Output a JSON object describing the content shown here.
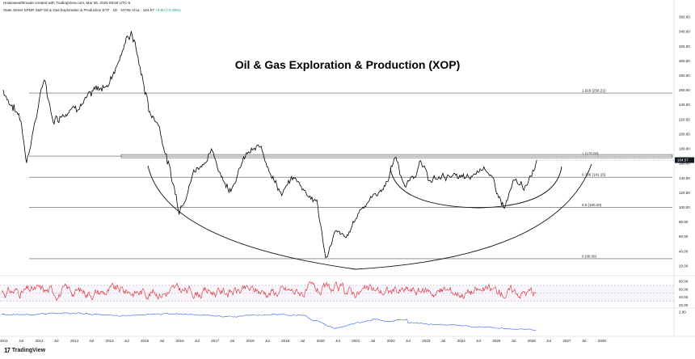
{
  "header": {
    "attribution": "Howtowealthmade created with TradingView.com, Mar 05, 2026 09:59 UTC-5",
    "symbol_line": "State Street SPDR S&P Oil & Gas Exploration & Production ETF · 1D · NYSE Arca",
    "ohlc": "164.57",
    "change": "+3.80 (+2.36%)"
  },
  "title": "Oil & Gas Exploration & Production (XOP)",
  "logo": {
    "mark": "17",
    "text": "TradingView"
  },
  "colors": {
    "price_line": "#000000",
    "rsi_line": "#e0202a",
    "osc_line": "#2962ff",
    "fib_line": "#555555",
    "price_tag": "#131722"
  },
  "chart_data": [
    {
      "type": "line",
      "title": "Oil & Gas Exploration & Production (XOP)",
      "series": [
        {
          "name": "XOP",
          "x": [
            "2011-01",
            "2011-07",
            "2011-09",
            "2012-03",
            "2012-06",
            "2013-01",
            "2013-06",
            "2014-01",
            "2014-06",
            "2014-09",
            "2015-03",
            "2015-06",
            "2016-01",
            "2016-06",
            "2016-12",
            "2017-06",
            "2017-12",
            "2018-05",
            "2018-12",
            "2019-04",
            "2019-12",
            "2020-03",
            "2020-06",
            "2020-10",
            "2021-03",
            "2021-06",
            "2021-11",
            "2022-03",
            "2022-06",
            "2022-11",
            "2023-03",
            "2023-09",
            "2024-04",
            "2024-09",
            "2025-04",
            "2025-07",
            "2025-12",
            "2026-03"
          ],
          "values": [
            260,
            220,
            165,
            275,
            220,
            240,
            250,
            270,
            320,
            340,
            230,
            215,
            98,
            150,
            175,
            125,
            172,
            180,
            118,
            140,
            108,
            30,
            65,
            55,
            100,
            112,
            128,
            170,
            125,
            160,
            135,
            145,
            135,
            160,
            98,
            130,
            128,
            164.57
          ]
        }
      ],
      "xlabels": [
        "2011",
        "2012",
        "2013",
        "2014",
        "2015",
        "2016",
        "2017",
        "2018",
        "2019",
        "2020",
        "2021",
        "2022",
        "2023",
        "2024",
        "2025",
        "2026",
        "2027",
        "2028"
      ],
      "ylabels": [
        "20.00",
        "40.00",
        "60.00",
        "80.00",
        "100.00",
        "120.00",
        "140.00",
        "160.00",
        "180.00",
        "200.00",
        "220.00",
        "240.00",
        "260.00",
        "280.00",
        "300.00",
        "320.00",
        "340.00",
        "360.00"
      ],
      "ylim": [
        10,
        370
      ],
      "price_tag": "164.57",
      "fib_levels": [
        {
          "value": 256.21,
          "label": "1.618 (256.21)"
        },
        {
          "value": 170.0,
          "label": "1 (170.00)"
        },
        {
          "value": 141.15,
          "label": "0.786 (141.15)"
        },
        {
          "value": 100.2,
          "label": "0.5 (100.20)"
        },
        {
          "value": 30.0,
          "label": "0 (30.00)"
        }
      ]
    },
    {
      "type": "line",
      "series": [
        {
          "name": "RSI",
          "values": []
        }
      ],
      "ylabels": [
        "80.00",
        "60.00",
        "40.00",
        "20.00"
      ],
      "ylim": [
        15,
        90
      ]
    },
    {
      "type": "line",
      "series": [
        {
          "name": "Oscillator",
          "values": []
        }
      ],
      "ylabels": [
        "2.00"
      ]
    }
  ]
}
